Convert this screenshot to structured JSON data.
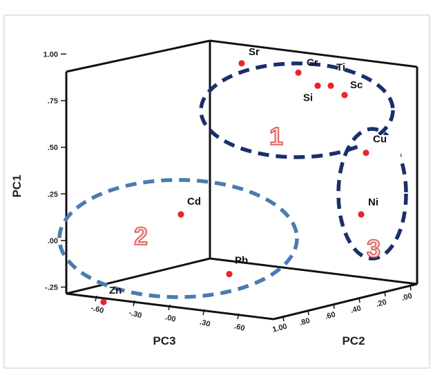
{
  "chart_data": {
    "type": "scatter3d",
    "axes": {
      "x": {
        "label": "PC3",
        "ticks": [
          "-.60",
          "-.30",
          ".00",
          ".30",
          ".60"
        ]
      },
      "y": {
        "label": "PC1",
        "ticks": [
          "1.00",
          ".75",
          ".50",
          ".25",
          ".00",
          "-.25"
        ],
        "range": [
          -0.3,
          1.15
        ]
      },
      "z": {
        "label": "PC2",
        "ticks": [
          "1.00",
          ".80",
          ".60",
          ".40",
          ".20",
          ".00"
        ]
      }
    },
    "points": [
      {
        "label": "Sr",
        "pc1": 0.95
      },
      {
        "label": "Cr",
        "pc1": 0.9
      },
      {
        "label": "Ti",
        "pc1": 0.83
      },
      {
        "label": "Si",
        "pc1": 0.83
      },
      {
        "label": "Sc",
        "pc1": 0.78
      },
      {
        "label": "Cu",
        "pc1": 0.47
      },
      {
        "label": "Ni",
        "pc1": 0.14
      },
      {
        "label": "Cd",
        "pc1": 0.14
      },
      {
        "label": "Pb",
        "pc1": -0.18
      },
      {
        "label": "Zn",
        "pc1": -0.33
      }
    ],
    "clusters": [
      {
        "label": "1",
        "color": "#1a2f6b"
      },
      {
        "label": "2",
        "color": "#4a7bb0"
      },
      {
        "label": "3",
        "color": "#1a2f6b"
      }
    ],
    "point_color": "#e8252b"
  }
}
